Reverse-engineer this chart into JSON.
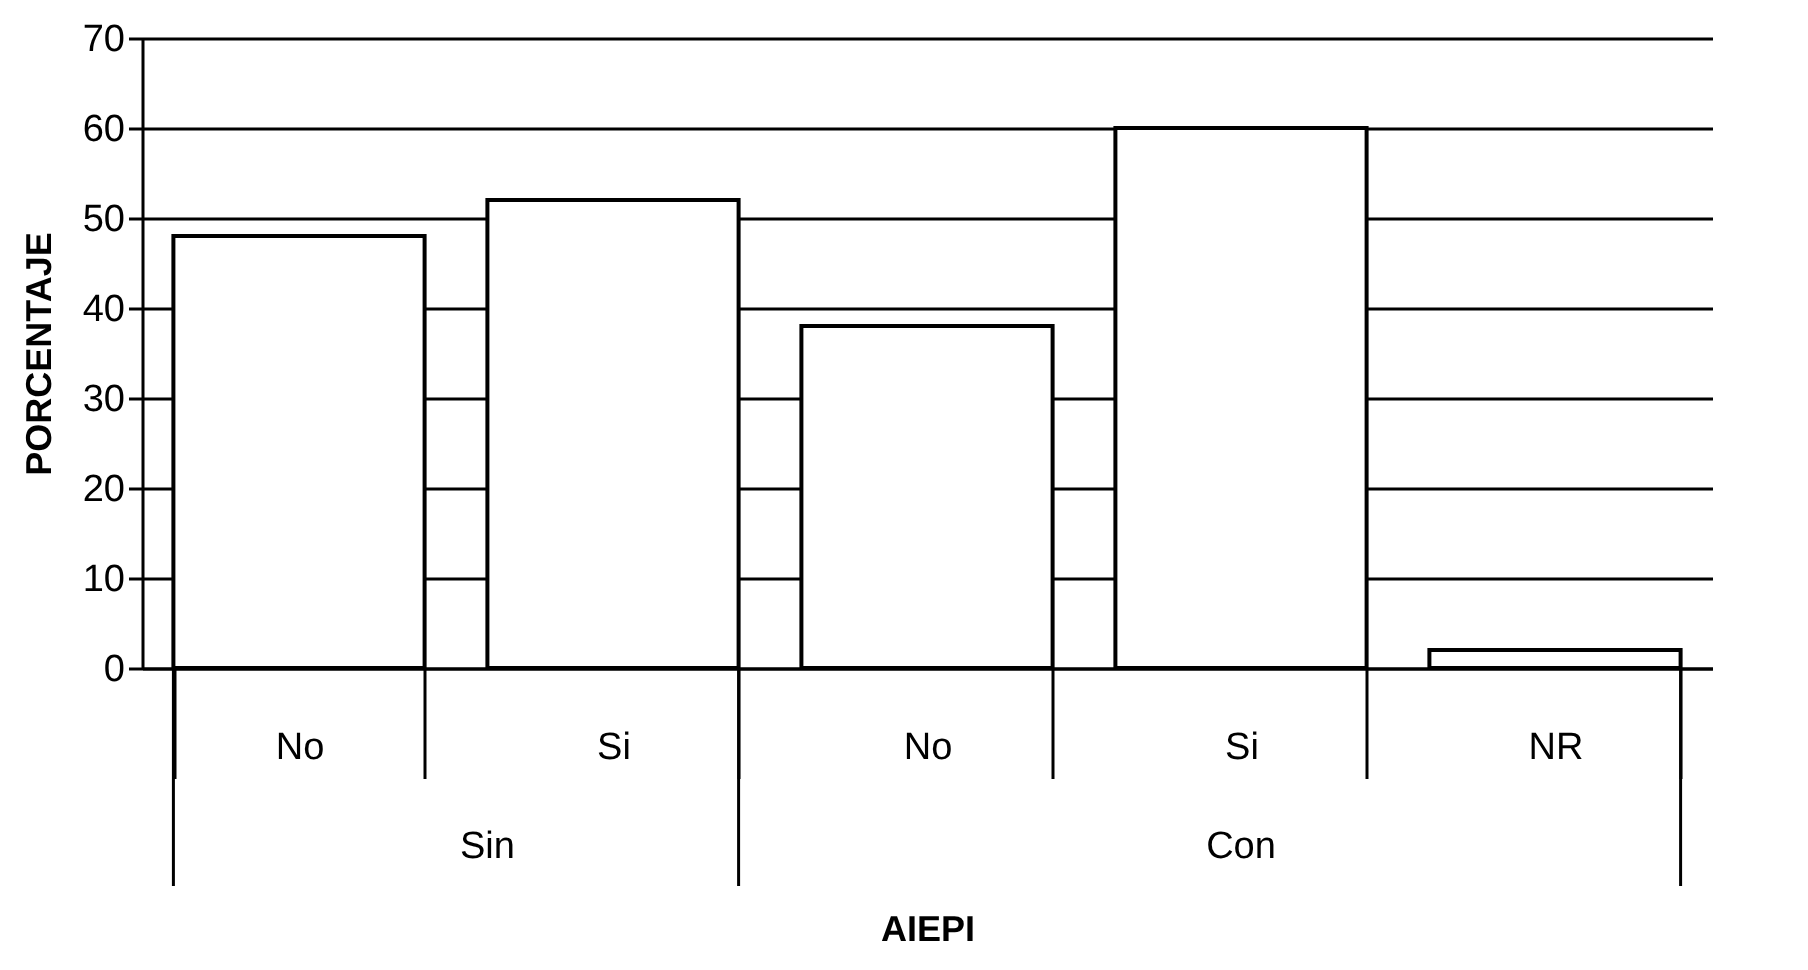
{
  "chart_data": {
    "type": "bar",
    "ylabel": "PORCENTAJE",
    "xlabel": "AIEPI",
    "categories": [
      "No",
      "Si",
      "No",
      "Si",
      "NR"
    ],
    "values": [
      48,
      52,
      38,
      60,
      2
    ],
    "color": "#ffffff",
    "ylim": [
      0,
      70
    ],
    "yticks": [
      0,
      10,
      20,
      30,
      40,
      50,
      60,
      70
    ],
    "grid": "y",
    "annotations": [
      "Sin",
      "Con"
    ]
  }
}
